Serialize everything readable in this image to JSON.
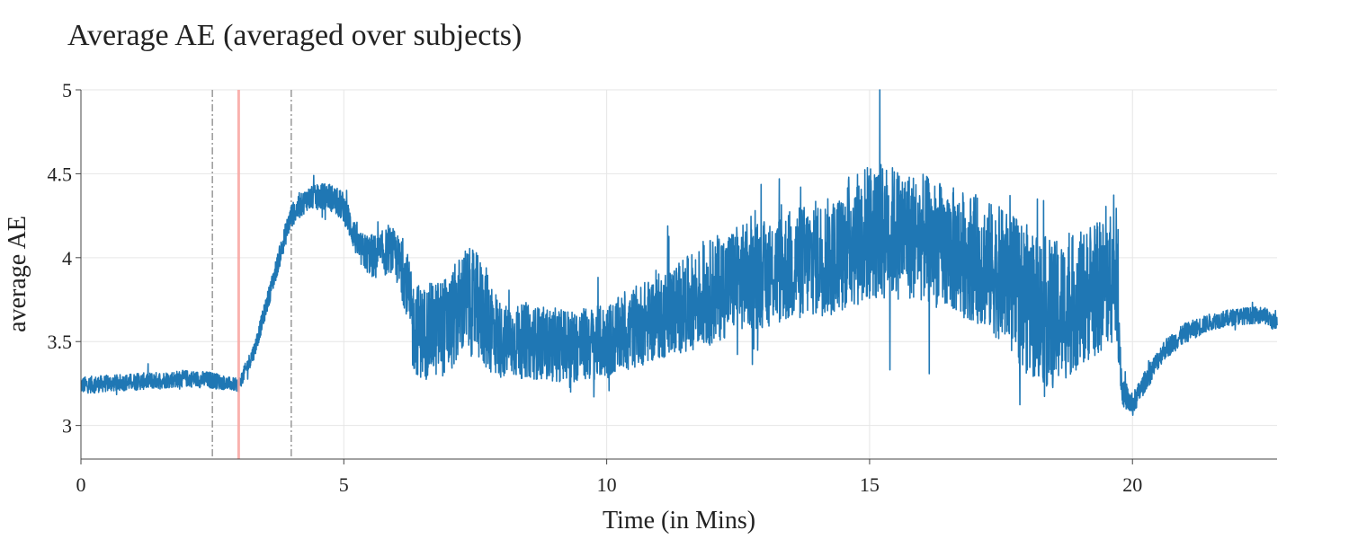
{
  "chart_data": {
    "type": "line",
    "title": "Average AE (averaged over subjects)",
    "xlabel": "Time (in Mins)",
    "ylabel": "average AE",
    "xlim": [
      0,
      22.75
    ],
    "ylim": [
      2.8,
      5.0
    ],
    "x_ticks": [
      0,
      5,
      10,
      15,
      20
    ],
    "y_ticks": [
      3,
      3.5,
      4,
      4.5,
      5
    ],
    "x_tick_labels": [
      "0",
      "5",
      "10",
      "15",
      "20"
    ],
    "y_tick_labels": [
      "3",
      "3.5",
      "4",
      "4.5",
      "5"
    ],
    "grid": true,
    "series": [
      {
        "color": "#1f77b4",
        "x": [
          0,
          0.5,
          1,
          1.5,
          2,
          2.5,
          2.8,
          3.0,
          3.3,
          3.6,
          3.9,
          4.0,
          4.3,
          4.7,
          5.0,
          5.3,
          5.6,
          5.9,
          6.0,
          6.2,
          6.3,
          6.5,
          7.0,
          7.3,
          7.5,
          7.8,
          8.0,
          8.5,
          9.0,
          9.5,
          10.0,
          10.5,
          11.0,
          11.5,
          12.0,
          12.5,
          13.0,
          13.5,
          14.0,
          14.5,
          14.6,
          15.0,
          15.5,
          16.0,
          16.5,
          17.0,
          17.5,
          18.0,
          18.5,
          19.0,
          19.5,
          19.7,
          19.8,
          20.0,
          20.3,
          20.6,
          21.0,
          21.5,
          22.0,
          22.5,
          22.75
        ],
        "y": [
          3.24,
          3.25,
          3.26,
          3.27,
          3.28,
          3.27,
          3.25,
          3.24,
          3.45,
          3.8,
          4.15,
          4.25,
          4.35,
          4.37,
          4.3,
          4.05,
          4.0,
          4.05,
          4.0,
          3.85,
          3.6,
          3.55,
          3.6,
          3.75,
          3.72,
          3.6,
          3.5,
          3.5,
          3.48,
          3.48,
          3.5,
          3.58,
          3.65,
          3.72,
          3.8,
          3.88,
          3.9,
          3.95,
          4.0,
          4.02,
          4.1,
          4.15,
          4.15,
          4.12,
          4.05,
          4.0,
          3.9,
          3.75,
          3.65,
          3.75,
          3.85,
          3.9,
          3.2,
          3.12,
          3.3,
          3.45,
          3.55,
          3.62,
          3.65,
          3.66,
          3.6
        ],
        "noise_amplitude": [
          0.05,
          0.05,
          0.05,
          0.05,
          0.05,
          0.05,
          0.04,
          0.04,
          0.05,
          0.06,
          0.07,
          0.07,
          0.07,
          0.08,
          0.09,
          0.1,
          0.14,
          0.14,
          0.15,
          0.2,
          0.28,
          0.28,
          0.3,
          0.32,
          0.32,
          0.3,
          0.22,
          0.22,
          0.22,
          0.22,
          0.22,
          0.24,
          0.26,
          0.28,
          0.32,
          0.32,
          0.32,
          0.34,
          0.35,
          0.35,
          0.4,
          0.42,
          0.4,
          0.38,
          0.38,
          0.38,
          0.4,
          0.45,
          0.45,
          0.4,
          0.4,
          0.4,
          0.08,
          0.07,
          0.06,
          0.06,
          0.06,
          0.05,
          0.05,
          0.05,
          0.05
        ]
      }
    ],
    "vlines": [
      {
        "x": 2.5,
        "style": "dashdot",
        "color": "#999999"
      },
      {
        "x": 3.0,
        "style": "solid",
        "color": "#f8a5a0"
      },
      {
        "x": 4.0,
        "style": "dashdot",
        "color": "#999999"
      }
    ]
  }
}
